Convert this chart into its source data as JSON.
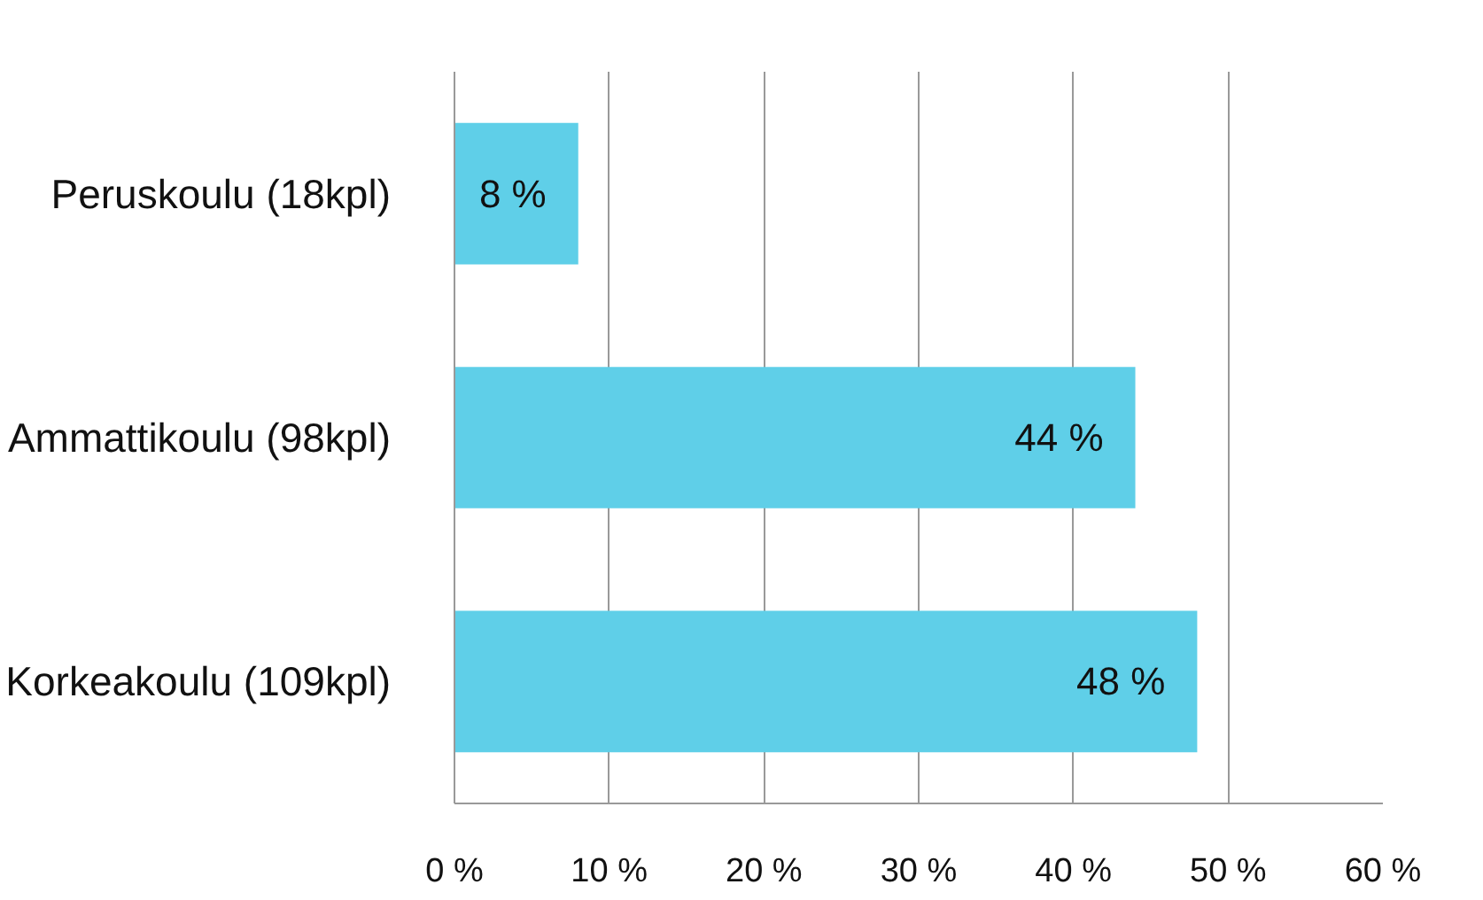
{
  "chart_data": {
    "type": "bar",
    "orientation": "horizontal",
    "categories": [
      "Peruskoulu (18kpl)",
      "Ammattikoulu (98kpl)",
      "Korkeakoulu (109kpl)"
    ],
    "values": [
      8,
      44,
      48
    ],
    "value_labels": [
      "8 %",
      "44 %",
      "48 %"
    ],
    "color": "#5fcfe8",
    "xlim": [
      0,
      60
    ],
    "xticks": [
      {
        "value": 0,
        "label": "0 %"
      },
      {
        "value": 10,
        "label": "10 %"
      },
      {
        "value": 20,
        "label": "20 %"
      },
      {
        "value": 30,
        "label": "30 %"
      },
      {
        "value": 40,
        "label": "40 %"
      },
      {
        "value": 50,
        "label": "50 %"
      },
      {
        "value": 60,
        "label": "60 %"
      }
    ],
    "grid": "x"
  }
}
